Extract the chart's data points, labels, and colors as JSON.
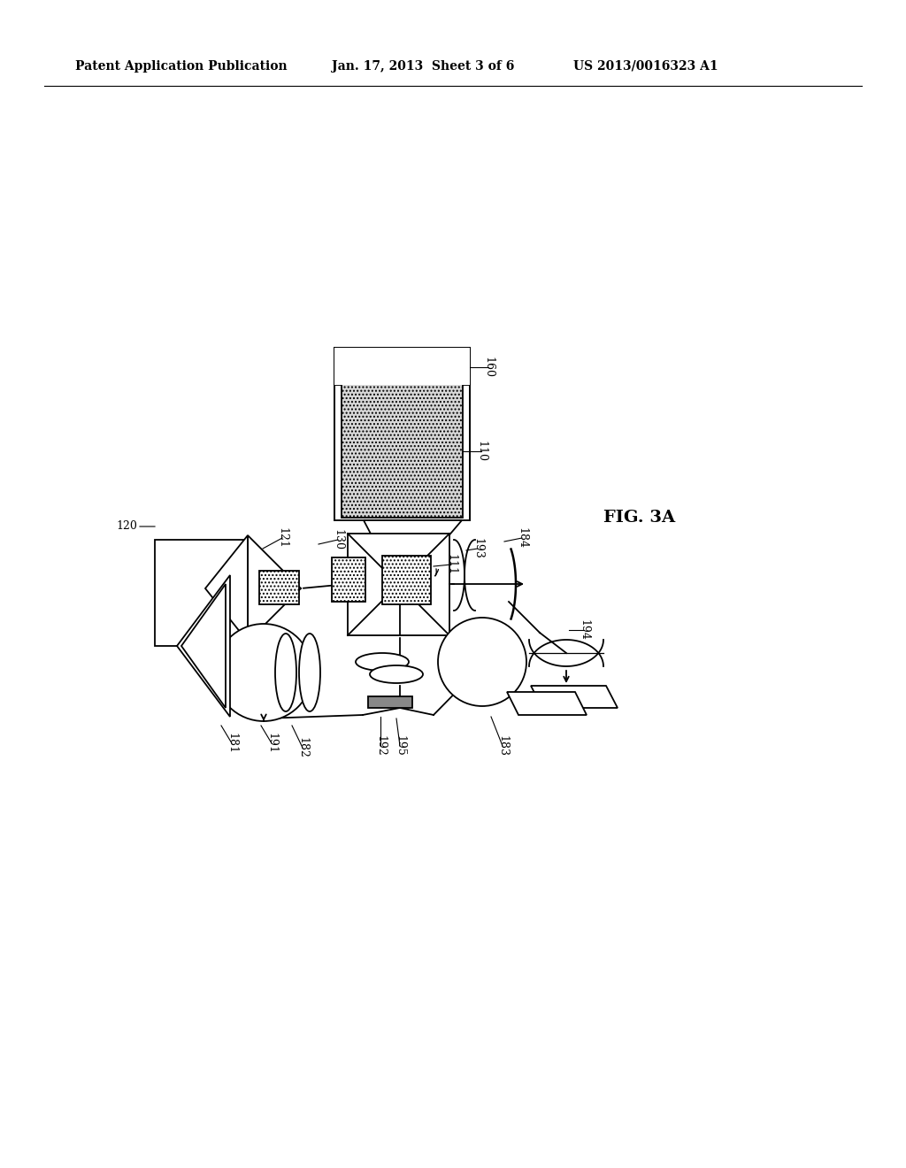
{
  "header_left": "Patent Application Publication",
  "header_mid": "Jan. 17, 2013  Sheet 3 of 6",
  "header_right": "US 2013/0016323 A1",
  "fig_label": "FIG. 3A",
  "bg_color": "#ffffff",
  "lc": "#000000",
  "lw": 1.3
}
